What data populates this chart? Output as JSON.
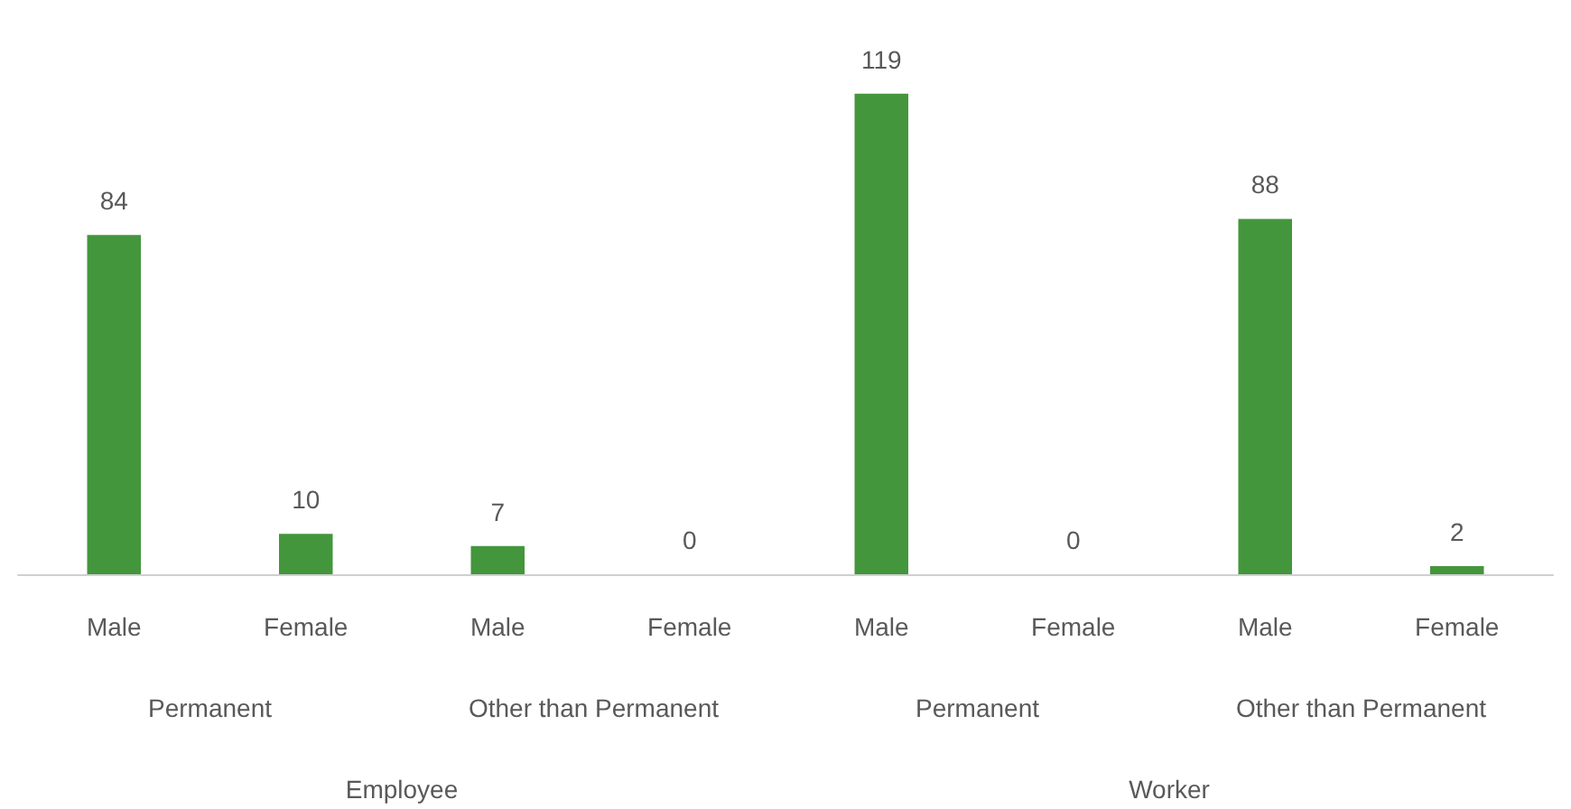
{
  "chart_data": {
    "type": "bar",
    "categories": [
      "Male",
      "Female",
      "Male",
      "Female",
      "Male",
      "Female",
      "Male",
      "Female"
    ],
    "values": [
      84,
      10,
      7,
      0,
      119,
      0,
      88,
      2
    ],
    "color": "#44963c",
    "data_labels": true,
    "annotations": [
      "Permanent",
      "Other than Permanent",
      "Permanent",
      "Other than Permanent",
      "Employee",
      "Worker"
    ]
  }
}
